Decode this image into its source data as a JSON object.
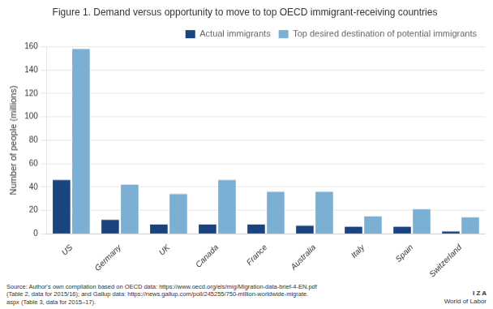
{
  "chart_data": {
    "type": "bar",
    "title": "Figure 1. Demand versus opportunity to move to top OECD immigrant-receiving countries",
    "ylabel": "Number of people (millions)",
    "categories": [
      "US",
      "Germany",
      "UK",
      "Canada",
      "France",
      "Australia",
      "Italy",
      "Spain",
      "Switzerland"
    ],
    "series": [
      {
        "name": "Actual immigrants",
        "color": "#1a4480",
        "values": [
          46,
          12,
          8,
          8,
          8,
          7,
          6,
          6,
          2
        ]
      },
      {
        "name": "Top desired destination of potential immigrants",
        "color": "#7bafd4",
        "values": [
          158,
          42,
          34,
          46,
          36,
          36,
          15,
          21,
          14
        ]
      }
    ],
    "ylim": [
      0,
      160
    ],
    "yticks": [
      0,
      20,
      40,
      60,
      80,
      100,
      120,
      140,
      160
    ],
    "grid": true,
    "legend": "upper right",
    "annotations": [
      "Source: Author's own compilation based on OECD data: https://www.oecd.org/els/mig/Migration-data-brief-4-EN.pdf\n(Table 2, data for 2015/16); and Gallup data: https://news.gallup.com/poll/245255/750-million-worldwide-migrate.\naspx (Table 3, data for 2015–17).",
      "I Z A",
      "World of Labor"
    ]
  }
}
